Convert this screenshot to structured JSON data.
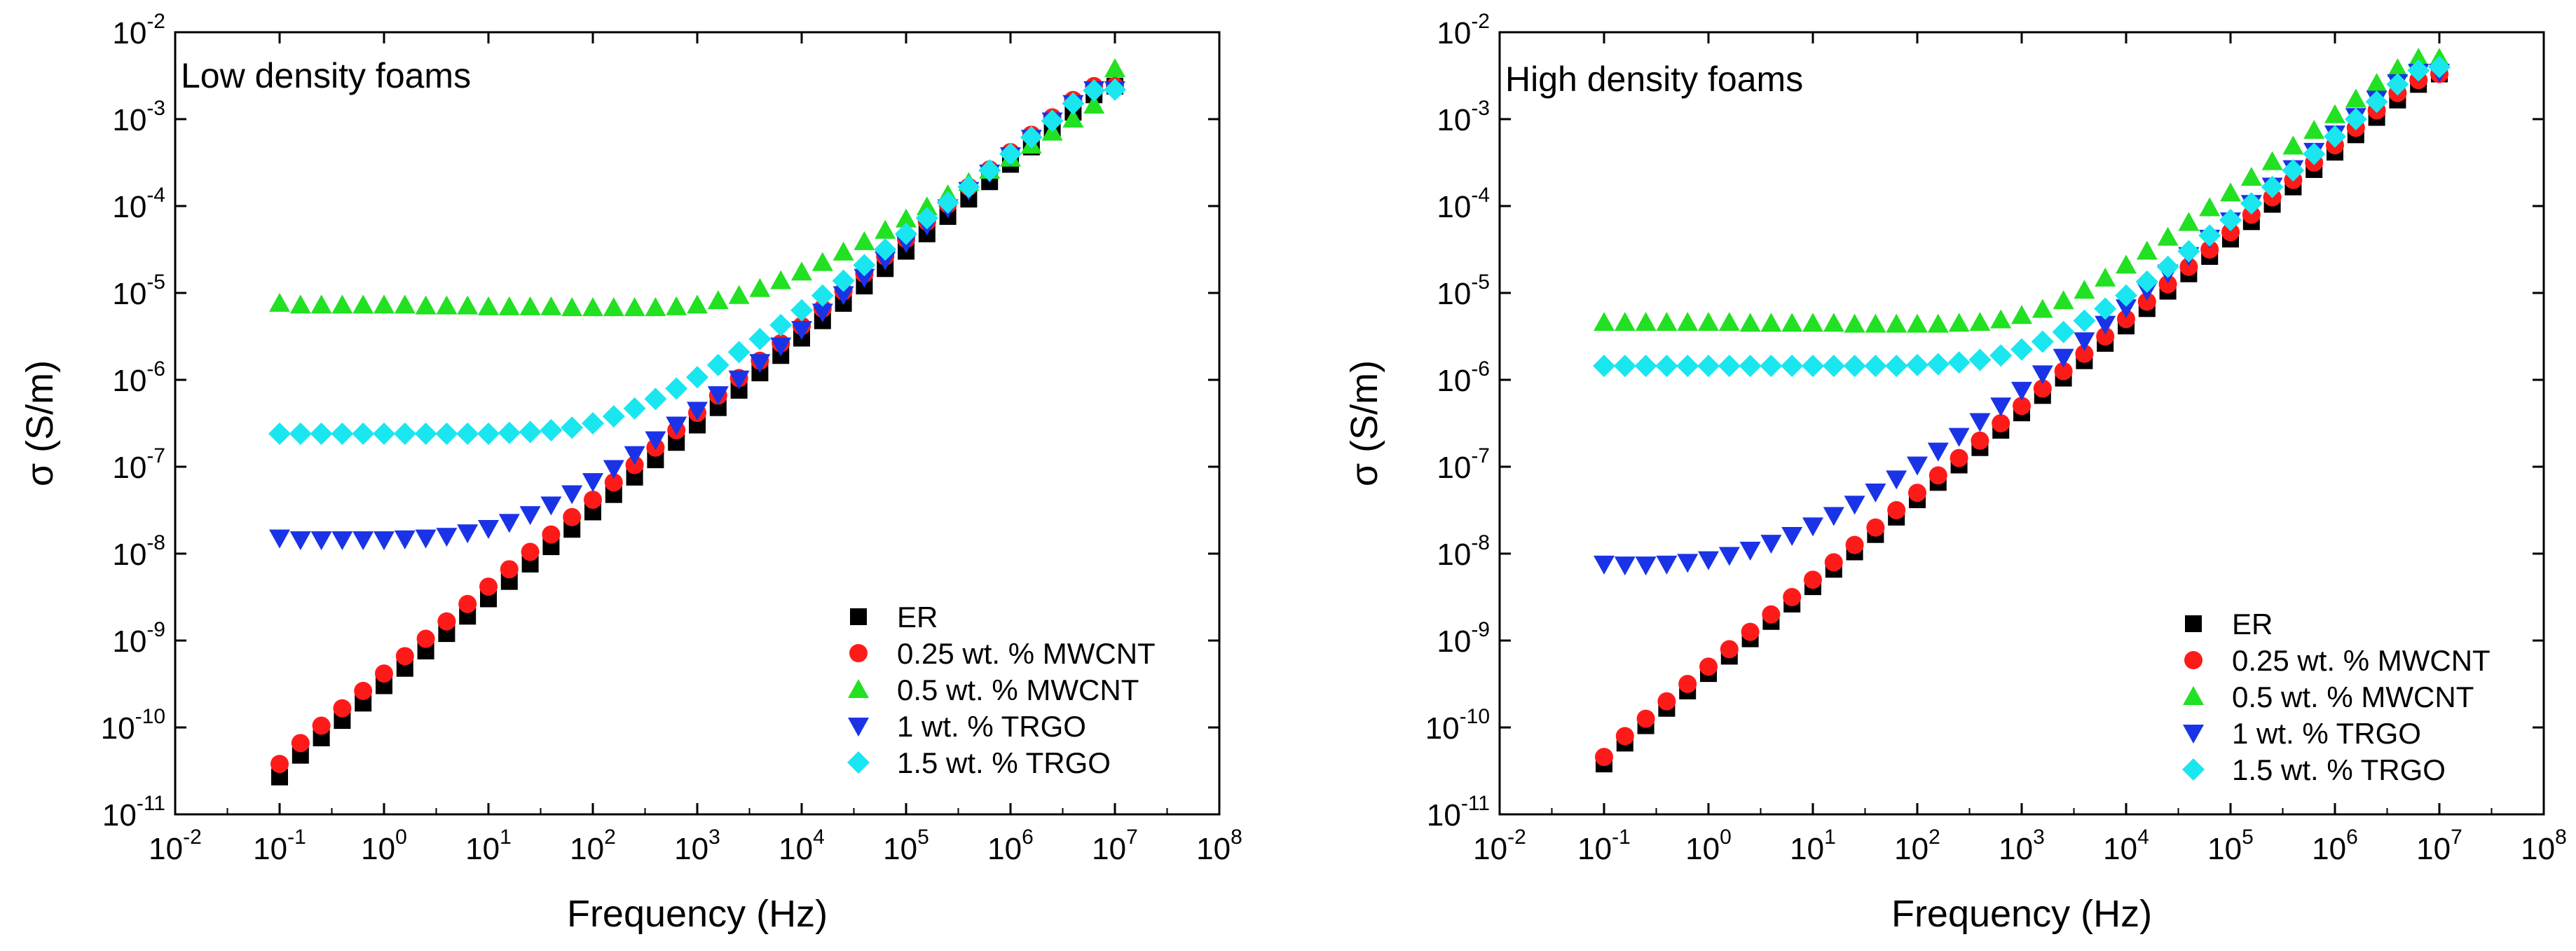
{
  "chart_data": [
    {
      "type": "scatter",
      "title": "Low density foams",
      "xlabel": "Frequency (Hz)",
      "ylabel": "σ (S/m)",
      "xscale": "log",
      "yscale": "log",
      "xlim": [
        0.01,
        100000000
      ],
      "ylim": [
        1e-11,
        0.01
      ],
      "xticks": [
        {
          "base": "10",
          "exp": "-2"
        },
        {
          "base": "10",
          "exp": "-1"
        },
        {
          "base": "10",
          "exp": "0"
        },
        {
          "base": "10",
          "exp": "1"
        },
        {
          "base": "10",
          "exp": "2"
        },
        {
          "base": "10",
          "exp": "3"
        },
        {
          "base": "10",
          "exp": "4"
        },
        {
          "base": "10",
          "exp": "5"
        },
        {
          "base": "10",
          "exp": "6"
        },
        {
          "base": "10",
          "exp": "7"
        },
        {
          "base": "10",
          "exp": "8"
        }
      ],
      "yticks": [
        {
          "base": "10",
          "exp": "-11"
        },
        {
          "base": "10",
          "exp": "-10"
        },
        {
          "base": "10",
          "exp": "-9"
        },
        {
          "base": "10",
          "exp": "-8"
        },
        {
          "base": "10",
          "exp": "-7"
        },
        {
          "base": "10",
          "exp": "-6"
        },
        {
          "base": "10",
          "exp": "-5"
        },
        {
          "base": "10",
          "exp": "-4"
        },
        {
          "base": "10",
          "exp": "-3"
        },
        {
          "base": "10",
          "exp": "-2"
        }
      ],
      "legend_position": "bottom-right",
      "x": [
        -1.0,
        -0.8,
        -0.6,
        -0.4,
        -0.2,
        0.0,
        0.2,
        0.4,
        0.6,
        0.8,
        1.0,
        1.2,
        1.4,
        1.6,
        1.8,
        2.0,
        2.2,
        2.4,
        2.6,
        2.8,
        3.0,
        3.2,
        3.4,
        3.6,
        3.8,
        4.0,
        4.2,
        4.4,
        4.6,
        4.8,
        5.0,
        5.2,
        5.4,
        5.6,
        5.8,
        6.0,
        6.2,
        6.4,
        6.6,
        6.8,
        7.0
      ],
      "x_note": "x values are log10(Frequency in Hz); series values are log10(σ in S/m)",
      "series": [
        {
          "name": "ER",
          "marker": "square",
          "color": "#000000",
          "values": [
            -10.57,
            -10.32,
            -10.12,
            -9.92,
            -9.72,
            -9.52,
            -9.32,
            -9.12,
            -8.92,
            -8.72,
            -8.52,
            -8.32,
            -8.12,
            -7.92,
            -7.72,
            -7.52,
            -7.32,
            -7.12,
            -6.92,
            -6.72,
            -6.52,
            -6.32,
            -6.12,
            -5.92,
            -5.72,
            -5.52,
            -5.32,
            -5.12,
            -4.92,
            -4.72,
            -4.52,
            -4.32,
            -4.12,
            -3.92,
            -3.72,
            -3.52,
            -3.32,
            -3.12,
            -2.92,
            -2.72,
            -2.62
          ]
        },
        {
          "name": "0.25 wt. % MWCNT",
          "marker": "circle",
          "color": "#ff1a1a",
          "values": [
            -10.42,
            -10.18,
            -9.98,
            -9.78,
            -9.58,
            -9.38,
            -9.18,
            -8.98,
            -8.78,
            -8.58,
            -8.38,
            -8.18,
            -7.98,
            -7.78,
            -7.58,
            -7.38,
            -7.18,
            -6.98,
            -6.78,
            -6.58,
            -6.38,
            -6.18,
            -5.98,
            -5.78,
            -5.58,
            -5.38,
            -5.18,
            -4.98,
            -4.78,
            -4.58,
            -4.38,
            -4.18,
            -3.98,
            -3.78,
            -3.58,
            -3.38,
            -3.18,
            -2.98,
            -2.78,
            -2.62,
            -2.62
          ]
        },
        {
          "name": "0.5 wt. % MWCNT",
          "marker": "triangle-up",
          "color": "#22e022",
          "values": [
            -5.12,
            -5.14,
            -5.14,
            -5.14,
            -5.14,
            -5.14,
            -5.14,
            -5.15,
            -5.15,
            -5.15,
            -5.16,
            -5.16,
            -5.16,
            -5.16,
            -5.17,
            -5.17,
            -5.17,
            -5.17,
            -5.17,
            -5.16,
            -5.14,
            -5.09,
            -5.03,
            -4.95,
            -4.86,
            -4.76,
            -4.65,
            -4.53,
            -4.41,
            -4.28,
            -4.15,
            -4.01,
            -3.87,
            -3.73,
            -3.59,
            -3.45,
            -3.3,
            -3.15,
            -3.0,
            -2.84,
            -2.42
          ]
        },
        {
          "name": "1 wt. % TRGO",
          "marker": "triangle-down",
          "color": "#1a33e6",
          "values": [
            -7.82,
            -7.84,
            -7.84,
            -7.84,
            -7.84,
            -7.84,
            -7.83,
            -7.82,
            -7.8,
            -7.76,
            -7.71,
            -7.64,
            -7.55,
            -7.44,
            -7.31,
            -7.17,
            -7.02,
            -6.86,
            -6.69,
            -6.52,
            -6.35,
            -6.17,
            -5.99,
            -5.8,
            -5.61,
            -5.42,
            -5.22,
            -5.02,
            -4.82,
            -4.62,
            -4.42,
            -4.22,
            -4.02,
            -3.82,
            -3.62,
            -3.42,
            -3.22,
            -3.02,
            -2.82,
            -2.66,
            -2.66
          ]
        },
        {
          "name": "1.5 wt. % TRGO",
          "marker": "diamond",
          "color": "#1ae6f0",
          "values": [
            -6.62,
            -6.62,
            -6.62,
            -6.62,
            -6.62,
            -6.62,
            -6.62,
            -6.62,
            -6.62,
            -6.62,
            -6.62,
            -6.61,
            -6.6,
            -6.58,
            -6.55,
            -6.5,
            -6.42,
            -6.33,
            -6.22,
            -6.1,
            -5.97,
            -5.83,
            -5.68,
            -5.53,
            -5.37,
            -5.2,
            -5.03,
            -4.86,
            -4.68,
            -4.5,
            -4.32,
            -4.14,
            -3.96,
            -3.78,
            -3.59,
            -3.4,
            -3.21,
            -3.02,
            -2.82,
            -2.67,
            -2.66
          ]
        }
      ]
    },
    {
      "type": "scatter",
      "title": "High density foams",
      "xlabel": "Frequency (Hz)",
      "ylabel": "σ (S/m)",
      "xscale": "log",
      "yscale": "log",
      "xlim": [
        0.01,
        100000000
      ],
      "ylim": [
        1e-11,
        0.01
      ],
      "xticks": [
        {
          "base": "10",
          "exp": "-2"
        },
        {
          "base": "10",
          "exp": "-1"
        },
        {
          "base": "10",
          "exp": "0"
        },
        {
          "base": "10",
          "exp": "1"
        },
        {
          "base": "10",
          "exp": "2"
        },
        {
          "base": "10",
          "exp": "3"
        },
        {
          "base": "10",
          "exp": "4"
        },
        {
          "base": "10",
          "exp": "5"
        },
        {
          "base": "10",
          "exp": "6"
        },
        {
          "base": "10",
          "exp": "7"
        },
        {
          "base": "10",
          "exp": "8"
        }
      ],
      "yticks": [
        {
          "base": "10",
          "exp": "-11"
        },
        {
          "base": "10",
          "exp": "-10"
        },
        {
          "base": "10",
          "exp": "-9"
        },
        {
          "base": "10",
          "exp": "-8"
        },
        {
          "base": "10",
          "exp": "-7"
        },
        {
          "base": "10",
          "exp": "-6"
        },
        {
          "base": "10",
          "exp": "-5"
        },
        {
          "base": "10",
          "exp": "-4"
        },
        {
          "base": "10",
          "exp": "-3"
        },
        {
          "base": "10",
          "exp": "-2"
        }
      ],
      "legend_position": "bottom-right",
      "x": [
        -1.0,
        -0.8,
        -0.6,
        -0.4,
        -0.2,
        0.0,
        0.2,
        0.4,
        0.6,
        0.8,
        1.0,
        1.2,
        1.4,
        1.6,
        1.8,
        2.0,
        2.2,
        2.4,
        2.6,
        2.8,
        3.0,
        3.2,
        3.4,
        3.6,
        3.8,
        4.0,
        4.2,
        4.4,
        4.6,
        4.8,
        5.0,
        5.2,
        5.4,
        5.6,
        5.8,
        6.0,
        6.2,
        6.4,
        6.6,
        6.8,
        7.0
      ],
      "x_note": "x values are log10(Frequency in Hz); series values are log10(σ in S/m)",
      "series": [
        {
          "name": "ER",
          "marker": "square",
          "color": "#000000",
          "values": [
            -10.42,
            -10.18,
            -9.98,
            -9.78,
            -9.58,
            -9.38,
            -9.18,
            -8.98,
            -8.78,
            -8.58,
            -8.38,
            -8.18,
            -7.98,
            -7.78,
            -7.58,
            -7.38,
            -7.18,
            -6.98,
            -6.78,
            -6.58,
            -6.38,
            -6.18,
            -5.98,
            -5.78,
            -5.58,
            -5.38,
            -5.18,
            -4.98,
            -4.78,
            -4.58,
            -4.38,
            -4.18,
            -3.98,
            -3.78,
            -3.58,
            -3.38,
            -3.18,
            -2.98,
            -2.78,
            -2.6,
            -2.48
          ]
        },
        {
          "name": "0.25 wt. % MWCNT",
          "marker": "circle",
          "color": "#ff1a1a",
          "values": [
            -10.34,
            -10.1,
            -9.9,
            -9.7,
            -9.5,
            -9.3,
            -9.1,
            -8.9,
            -8.7,
            -8.5,
            -8.3,
            -8.1,
            -7.9,
            -7.7,
            -7.5,
            -7.3,
            -7.1,
            -6.9,
            -6.7,
            -6.5,
            -6.3,
            -6.1,
            -5.9,
            -5.7,
            -5.5,
            -5.3,
            -5.1,
            -4.9,
            -4.7,
            -4.5,
            -4.3,
            -4.1,
            -3.9,
            -3.7,
            -3.5,
            -3.3,
            -3.1,
            -2.9,
            -2.7,
            -2.55,
            -2.48
          ]
        },
        {
          "name": "0.5 wt. % MWCNT",
          "marker": "triangle-up",
          "color": "#22e022",
          "values": [
            -5.34,
            -5.34,
            -5.34,
            -5.34,
            -5.34,
            -5.34,
            -5.34,
            -5.35,
            -5.35,
            -5.35,
            -5.35,
            -5.35,
            -5.36,
            -5.36,
            -5.36,
            -5.36,
            -5.36,
            -5.35,
            -5.34,
            -5.31,
            -5.26,
            -5.19,
            -5.09,
            -4.97,
            -4.83,
            -4.68,
            -4.52,
            -4.36,
            -4.19,
            -4.02,
            -3.85,
            -3.67,
            -3.49,
            -3.31,
            -3.13,
            -2.95,
            -2.77,
            -2.59,
            -2.42,
            -2.3,
            -2.3
          ]
        },
        {
          "name": "1 wt. % TRGO",
          "marker": "triangle-down",
          "color": "#1a33e6",
          "values": [
            -8.12,
            -8.13,
            -8.13,
            -8.12,
            -8.1,
            -8.07,
            -8.02,
            -7.96,
            -7.88,
            -7.79,
            -7.68,
            -7.56,
            -7.43,
            -7.29,
            -7.14,
            -6.98,
            -6.82,
            -6.65,
            -6.48,
            -6.3,
            -6.12,
            -5.93,
            -5.74,
            -5.55,
            -5.36,
            -5.17,
            -4.97,
            -4.77,
            -4.57,
            -4.37,
            -4.17,
            -3.97,
            -3.77,
            -3.57,
            -3.37,
            -3.17,
            -2.97,
            -2.77,
            -2.58,
            -2.46,
            -2.46
          ]
        },
        {
          "name": "1.5 wt. % TRGO",
          "marker": "diamond",
          "color": "#1ae6f0",
          "values": [
            -5.84,
            -5.84,
            -5.84,
            -5.84,
            -5.84,
            -5.84,
            -5.84,
            -5.84,
            -5.84,
            -5.84,
            -5.84,
            -5.84,
            -5.84,
            -5.84,
            -5.84,
            -5.83,
            -5.82,
            -5.8,
            -5.77,
            -5.72,
            -5.65,
            -5.56,
            -5.45,
            -5.32,
            -5.18,
            -5.03,
            -4.87,
            -4.7,
            -4.52,
            -4.34,
            -4.16,
            -3.97,
            -3.78,
            -3.59,
            -3.4,
            -3.2,
            -3.0,
            -2.8,
            -2.6,
            -2.44,
            -2.4
          ]
        }
      ]
    }
  ]
}
